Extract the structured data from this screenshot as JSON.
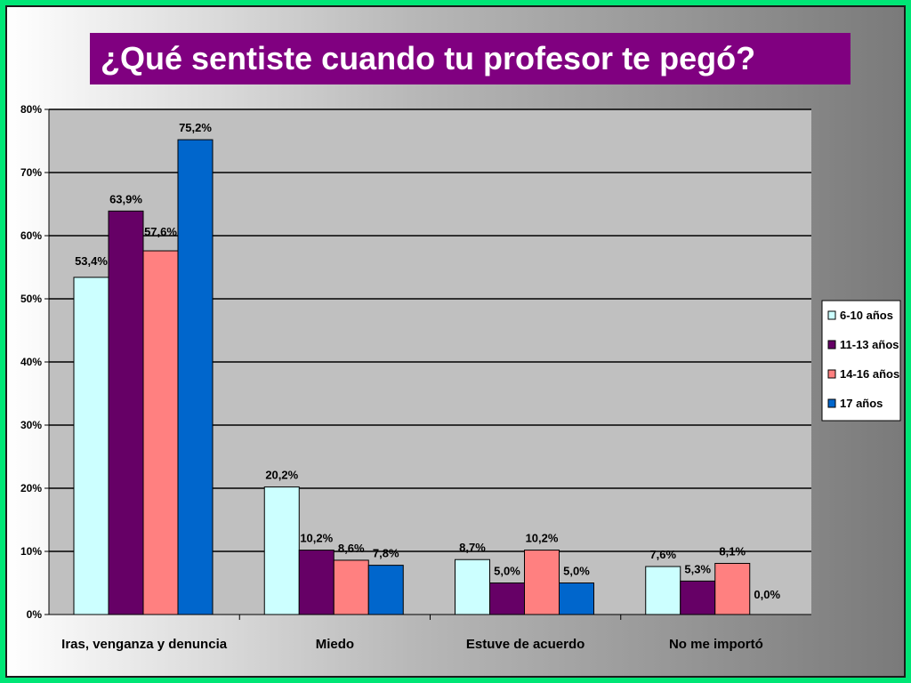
{
  "chart_data": {
    "type": "bar",
    "title": "¿Qué sentiste cuando tu profesor te pegó?",
    "categories": [
      "Iras, venganza y denuncia",
      "Miedo",
      "Estuve de acuerdo",
      "No me importó"
    ],
    "series": [
      {
        "name": "6-10 años",
        "color": "#ccffff",
        "values": [
          53.4,
          20.2,
          8.7,
          7.6
        ],
        "labels": [
          "53,4%",
          "20,2%",
          "8,7%",
          "7,6%"
        ]
      },
      {
        "name": "11-13 años",
        "color": "#660066",
        "values": [
          63.9,
          10.2,
          5.0,
          5.3
        ],
        "labels": [
          "63,9%",
          "10,2%",
          "5,0%",
          "5,3%"
        ]
      },
      {
        "name": "14-16 años",
        "color": "#ff8080",
        "values": [
          57.6,
          8.6,
          10.2,
          8.1
        ],
        "labels": [
          "57,6%",
          "8,6%",
          "10,2%",
          "8,1%"
        ]
      },
      {
        "name": "17 años",
        "color": "#0066cc",
        "values": [
          75.2,
          7.8,
          5.0,
          0.0
        ],
        "labels": [
          "75,2%",
          "7,8%",
          "5,0%",
          "0,0%"
        ]
      }
    ],
    "yticks": [
      "0%",
      "10%",
      "20%",
      "30%",
      "40%",
      "50%",
      "60%",
      "70%",
      "80%"
    ],
    "ylim": [
      0,
      80
    ],
    "grid": true,
    "legend": "right"
  }
}
